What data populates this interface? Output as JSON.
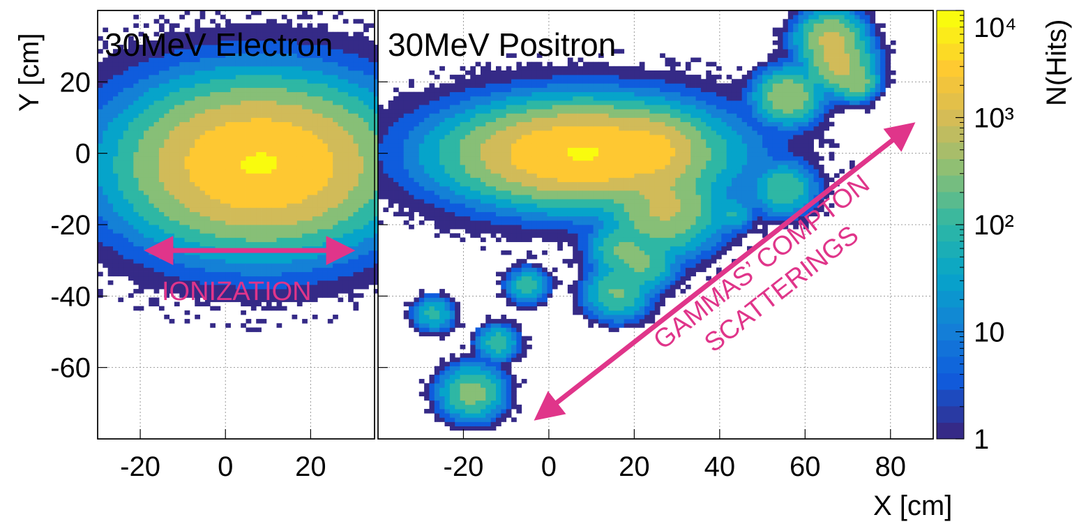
{
  "chart_data": [
    {
      "type": "heatmap",
      "title": "30MeV Electron",
      "xlabel": "",
      "ylabel": "Y [cm]",
      "xlim": [
        -30,
        35
      ],
      "ylim": [
        -80,
        40
      ],
      "x_ticks": [
        -20,
        0,
        20
      ],
      "y_ticks": [
        20,
        0,
        -20,
        -40,
        -60
      ],
      "x_tick_labels": [
        "-20",
        "0",
        "20"
      ],
      "y_tick_labels": [
        "20",
        "0",
        "-20",
        "-40",
        "-60"
      ],
      "grid": true,
      "clusters": [
        {
          "x": 8,
          "y": -3,
          "sx": 11,
          "sy": 8,
          "peak_hits": 6000
        }
      ],
      "annotations": [
        {
          "text": "IONIZATION",
          "arrow": "double",
          "x_from": -14,
          "x_to": 26,
          "y": -27
        }
      ]
    },
    {
      "type": "heatmap",
      "title": "30MeV Positron",
      "xlabel": "X [cm]",
      "ylabel": "",
      "xlim": [
        -40,
        90
      ],
      "ylim": [
        -80,
        40
      ],
      "x_ticks": [
        -20,
        0,
        20,
        40,
        60,
        80
      ],
      "y_ticks": [
        20,
        0,
        -20,
        -40,
        -60
      ],
      "x_tick_labels": [
        "-20",
        "0",
        "20",
        "40",
        "60",
        "80"
      ],
      "grid": true,
      "clusters": [
        {
          "x": 8,
          "y": 0,
          "sx": 11,
          "sy": 5,
          "peak_hits": 6000
        },
        {
          "x": 25,
          "y": 1,
          "sx": 4,
          "sy": 4,
          "peak_hits": 1500
        },
        {
          "x": 27,
          "y": -15,
          "sx": 5,
          "sy": 5,
          "peak_hits": 700
        },
        {
          "x": 17,
          "y": -27,
          "sx": 3,
          "sy": 3,
          "peak_hits": 200
        },
        {
          "x": 22,
          "y": -31,
          "sx": 3,
          "sy": 3,
          "peak_hits": 200
        },
        {
          "x": 16,
          "y": -39,
          "sx": 3,
          "sy": 3,
          "peak_hits": 200
        },
        {
          "x": 55,
          "y": -10,
          "sx": 3,
          "sy": 3,
          "peak_hits": 150
        },
        {
          "x": 43,
          "y": -17,
          "sx": 2,
          "sy": 2,
          "peak_hits": 60
        },
        {
          "x": 56,
          "y": 16,
          "sx": 3,
          "sy": 3,
          "peak_hits": 500
        },
        {
          "x": 66,
          "y": 32,
          "sx": 3,
          "sy": 3,
          "peak_hits": 800
        },
        {
          "x": 68,
          "y": 25,
          "sx": 3,
          "sy": 3,
          "peak_hits": 800
        },
        {
          "x": 72,
          "y": 20,
          "sx": 2,
          "sy": 2,
          "peak_hits": 400
        },
        {
          "x": -5,
          "y": -37,
          "sx": 2,
          "sy": 2,
          "peak_hits": 100
        },
        {
          "x": -27,
          "y": -45,
          "sx": 2,
          "sy": 2,
          "peak_hits": 80
        },
        {
          "x": -12,
          "y": -53,
          "sx": 2,
          "sy": 2,
          "peak_hits": 120
        },
        {
          "x": -18,
          "y": -67,
          "sx": 3,
          "sy": 3,
          "peak_hits": 300
        }
      ],
      "annotations": [
        {
          "text": "GAMMAS’ COMPTON",
          "line2": "SCATTERINGS",
          "arrow": "double",
          "x_from": 0,
          "y_from": -71,
          "x_to": 83,
          "y_to": 6
        }
      ]
    }
  ],
  "colorbar": {
    "label": "N(Hits)",
    "scale": "log",
    "range": [
      1,
      10000
    ],
    "tick_labels": [
      "1",
      "10",
      "10²",
      "10³",
      "10⁴"
    ],
    "colors": [
      "#352a87",
      "#0f5cdd",
      "#1481d6",
      "#06a4ca",
      "#2eb7a4",
      "#87bf77",
      "#d1bb59",
      "#fec832",
      "#f9fb0e"
    ]
  }
}
